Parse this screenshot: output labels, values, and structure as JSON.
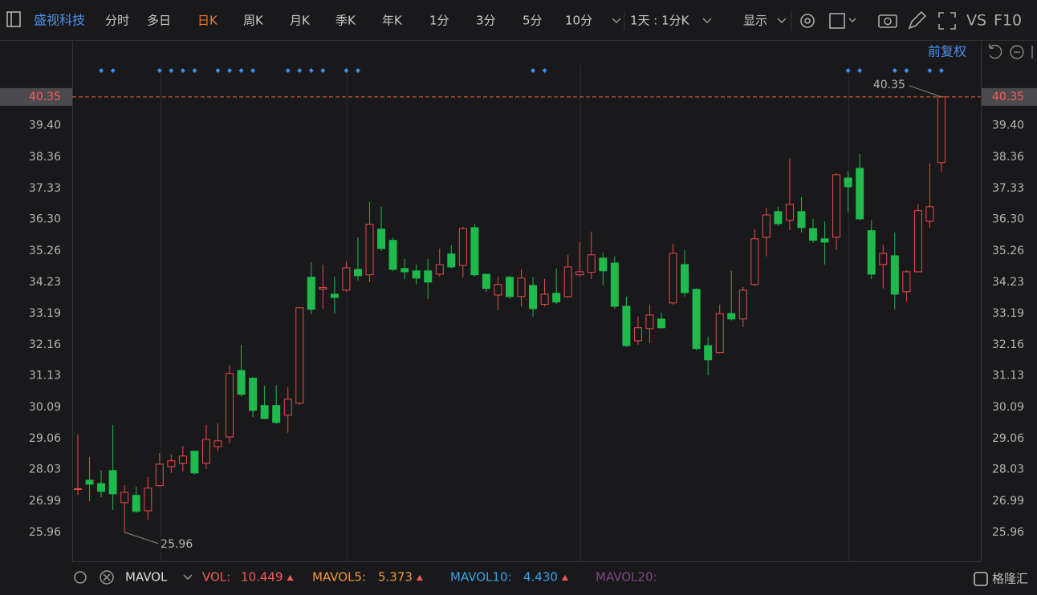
{
  "toolbar": {
    "stock": "盛视科技",
    "periods": [
      "分时",
      "多日",
      "日K",
      "周K",
      "月K",
      "季K",
      "年K",
      "1分",
      "3分",
      "5分",
      "10分"
    ],
    "active": 2,
    "interval": "1天 : 1分K",
    "display": "显示",
    "vs": "VS",
    "f10": "F10",
    "adjust": "前复权"
  },
  "chart_data": {
    "type": "candlestick",
    "up_color": "#e84b4b",
    "down_color": "#1fb94c",
    "open": [
      27.38,
      27.68,
      27.57,
      28.0,
      26.94,
      27.18,
      26.67,
      27.5,
      28.13,
      28.24,
      28.64,
      28.24,
      28.79,
      29.11,
      31.31,
      31.05,
      30.15,
      30.15,
      29.83,
      30.23,
      34.39,
      34.0,
      33.83,
      33.96,
      34.65,
      34.47,
      35.98,
      35.61,
      34.68,
      34.6,
      34.6,
      34.49,
      35.16,
      34.78,
      36.03,
      34.49,
      33.8,
      34.39,
      33.75,
      34.12,
      33.49,
      33.86,
      33.75,
      34.47,
      34.55,
      35.02,
      34.86,
      33.43,
      32.29,
      32.69,
      33.01,
      33.54,
      34.81,
      33.99,
      32.13,
      31.9,
      33.19,
      33.01,
      34.15,
      35.71,
      36.56,
      36.27,
      36.56,
      36.0,
      35.66,
      35.71,
      37.67,
      37.99,
      35.93,
      34.81,
      35.1,
      33.91,
      34.57,
      36.24,
      38.18
    ],
    "high": [
      29.19,
      28.45,
      28.0,
      29.51,
      27.52,
      27.47,
      27.79,
      28.58,
      28.53,
      28.82,
      28.66,
      29.51,
      29.56,
      31.47,
      32.16,
      31.1,
      30.8,
      30.83,
      30.76,
      33.38,
      34.89,
      34.81,
      34.41,
      34.92,
      35.71,
      36.88,
      36.72,
      35.71,
      35.0,
      34.81,
      35.0,
      35.34,
      35.45,
      36.06,
      36.16,
      34.49,
      34.41,
      34.44,
      34.65,
      34.41,
      34.33,
      34.68,
      35.13,
      35.55,
      35.9,
      35.21,
      35.08,
      33.75,
      33.09,
      33.49,
      33.22,
      35.5,
      35.29,
      34.02,
      32.43,
      33.49,
      34.6,
      34.07,
      35.98,
      36.69,
      36.72,
      38.31,
      37.04,
      36.32,
      36.24,
      37.83,
      37.89,
      38.47,
      36.27,
      35.47,
      35.87,
      34.63,
      36.8,
      38.15,
      40.35
    ],
    "low": [
      27.2,
      26.99,
      27.12,
      26.7,
      25.96,
      26.6,
      26.38,
      27.47,
      27.92,
      27.97,
      27.87,
      28.05,
      28.64,
      28.9,
      30.44,
      29.77,
      29.7,
      29.54,
      29.25,
      30.17,
      33.17,
      33.35,
      33.19,
      33.91,
      34.28,
      34.23,
      35.26,
      34.6,
      34.33,
      34.15,
      33.67,
      34.41,
      34.68,
      34.39,
      34.41,
      33.91,
      33.3,
      33.67,
      33.43,
      33.09,
      33.43,
      33.51,
      33.7,
      34.41,
      34.33,
      34.12,
      33.35,
      32.08,
      32.16,
      32.21,
      32.69,
      33.49,
      33.75,
      31.97,
      31.15,
      31.87,
      32.96,
      32.74,
      34.1,
      35.08,
      36.08,
      35.95,
      35.87,
      35.53,
      34.81,
      35.29,
      36.53,
      36.27,
      34.33,
      34.02,
      33.33,
      33.59,
      34.55,
      36.03,
      37.86
    ],
    "close": [
      27.4,
      27.55,
      27.31,
      27.23,
      27.28,
      26.65,
      27.42,
      28.21,
      28.32,
      28.48,
      27.92,
      29.03,
      28.98,
      31.21,
      30.52,
      29.99,
      29.72,
      29.59,
      30.36,
      33.38,
      33.33,
      34.05,
      33.72,
      34.7,
      34.44,
      36.14,
      35.34,
      34.65,
      34.57,
      34.36,
      34.23,
      34.81,
      34.73,
      36.0,
      34.47,
      34.02,
      34.15,
      33.75,
      34.36,
      33.35,
      33.83,
      33.57,
      34.73,
      34.57,
      35.13,
      34.6,
      33.43,
      32.13,
      32.72,
      33.14,
      32.72,
      35.18,
      33.88,
      32.03,
      31.66,
      33.19,
      33.01,
      33.96,
      35.66,
      36.45,
      36.16,
      36.8,
      36.03,
      35.61,
      35.55,
      37.78,
      37.38,
      36.32,
      34.49,
      35.18,
      33.83,
      34.57,
      36.59,
      36.72,
      40.35
    ],
    "ylim": [
      25.0,
      41.38
    ],
    "yticks": [
      25.96,
      26.99,
      28.03,
      29.06,
      30.09,
      31.13,
      32.16,
      33.19,
      34.23,
      35.26,
      {
        "value": 36.3,
        "label": "36.30"
      },
      37.33,
      38.36,
      {
        "value": 39.4,
        "label": "39.40"
      }
    ],
    "grid": false
  },
  "indicator_bar": {
    "name": "MAVOL",
    "items": [
      {
        "label": "VOL:",
        "value": "10.449",
        "color": "#f05a5a"
      },
      {
        "label": "MAVOL5:",
        "value": "5.373",
        "color": "#f0963c"
      },
      {
        "label": "MAVOL10:",
        "value": "4.430",
        "color": "#3aa4e8"
      },
      {
        "label": "MAVOL20:",
        "color": "#7d4a80"
      }
    ]
  },
  "watermark": "格隆汇"
}
